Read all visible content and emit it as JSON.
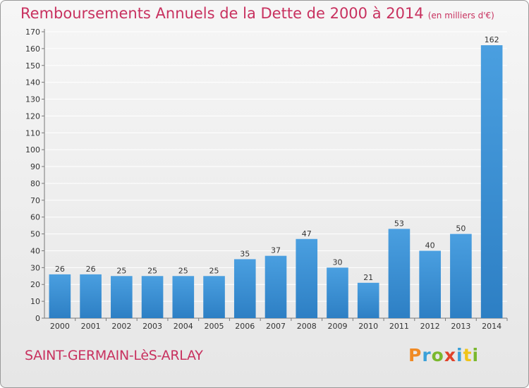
{
  "title": "Remboursements Annuels de la Dette de 2000 à 2014",
  "title_unit": "(en milliers d'€)",
  "commune": "SAINT-GERMAIN-LèS-ARLAY",
  "logo": {
    "text": "Proxiti",
    "colors": [
      "#f08a24",
      "#3aa0d8",
      "#7ab82e",
      "#e0422a",
      "#3aa0d8",
      "#f0c419",
      "#7ab82e"
    ]
  },
  "colors": {
    "bar": "#4a9fe0",
    "bar_dark": "#2d7fc4",
    "title": "#c8315f",
    "grid": "#ffffff",
    "axis": "#777777"
  },
  "chart_data": {
    "type": "bar",
    "categories": [
      "2000",
      "2001",
      "2002",
      "2003",
      "2004",
      "2005",
      "2006",
      "2007",
      "2008",
      "2009",
      "2010",
      "2011",
      "2012",
      "2013",
      "2014"
    ],
    "values": [
      26,
      26,
      25,
      25,
      25,
      25,
      35,
      37,
      47,
      30,
      21,
      53,
      40,
      50,
      162
    ],
    "ylim": [
      0,
      170
    ],
    "yticks": [
      0,
      10,
      20,
      30,
      40,
      50,
      60,
      70,
      80,
      90,
      100,
      110,
      120,
      130,
      140,
      150,
      160,
      170
    ],
    "grid": true,
    "data_labels": true
  }
}
